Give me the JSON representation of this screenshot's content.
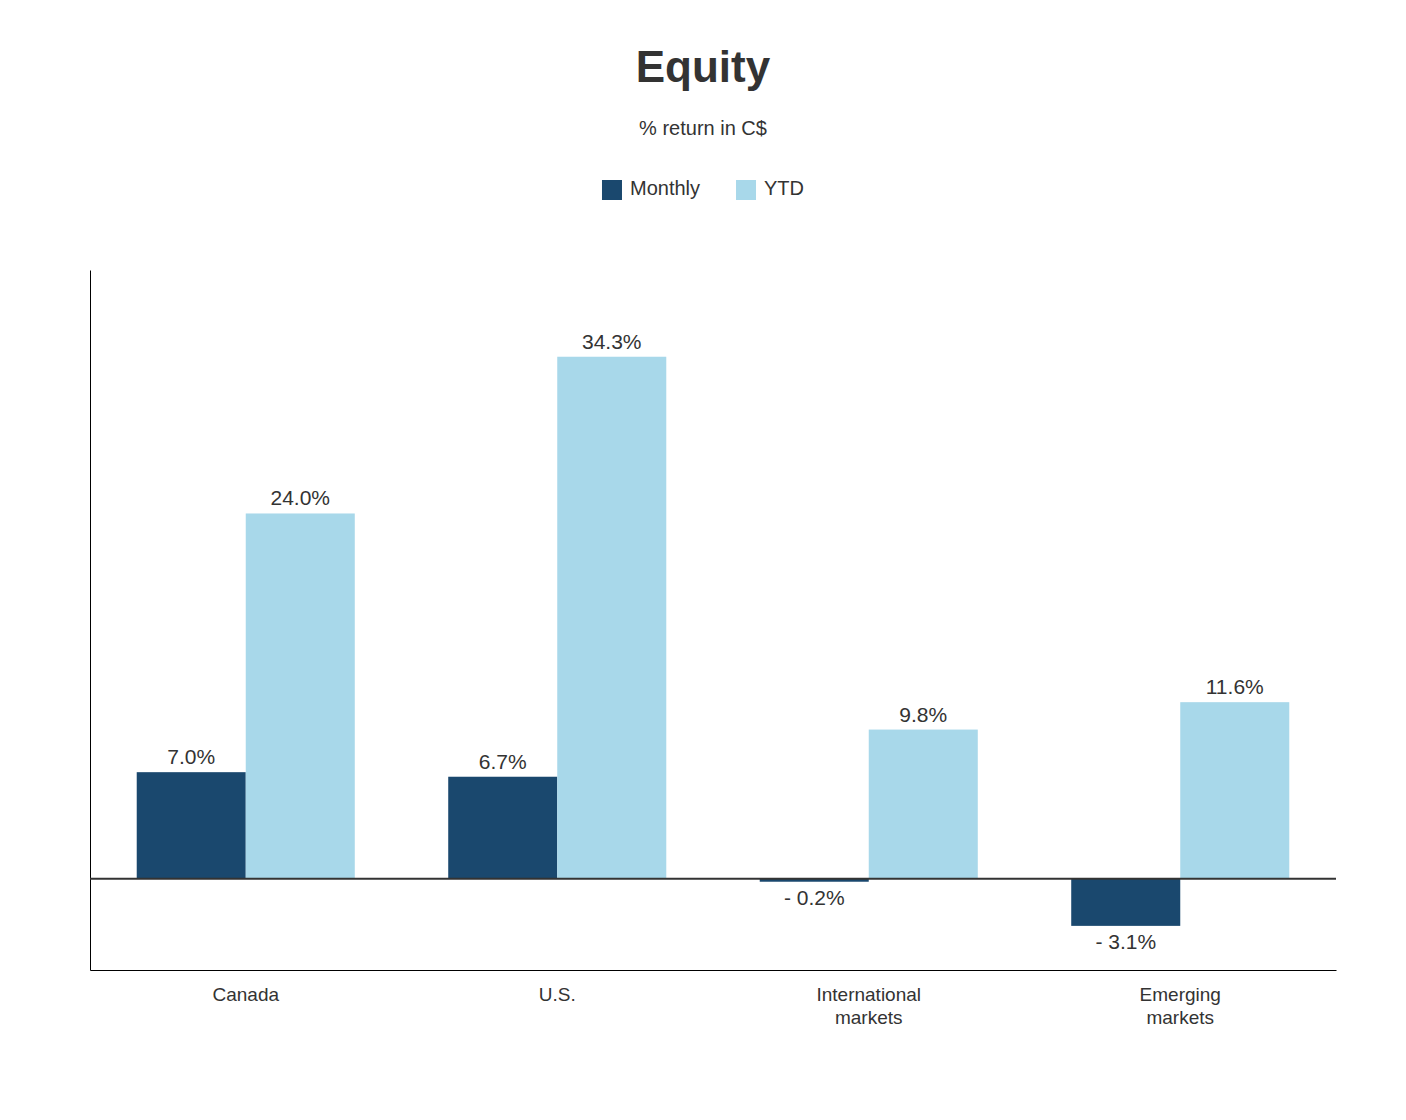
{
  "chart_data": {
    "type": "bar",
    "title": "Equity",
    "subtitle": "% return in C$",
    "categories": [
      "Canada",
      "U.S.",
      "International\nmarkets",
      "Emerging\nmarkets"
    ],
    "series": [
      {
        "name": "Monthly",
        "color": "#1a486e",
        "values": [
          7.0,
          6.7,
          -0.2,
          -3.1
        ],
        "value_labels": [
          "7.0%",
          "6.7%",
          "- 0.2%",
          "- 3.1%"
        ]
      },
      {
        "name": "YTD",
        "color": "#a8d8ea",
        "values": [
          24.0,
          34.3,
          9.8,
          11.6
        ],
        "value_labels": [
          "24.0%",
          "34.3%",
          "9.8%",
          "11.6%"
        ]
      }
    ],
    "ylim": [
      -6,
      40
    ],
    "grid": false,
    "legend": "top",
    "data_labels": true,
    "tick_labels": "x"
  }
}
